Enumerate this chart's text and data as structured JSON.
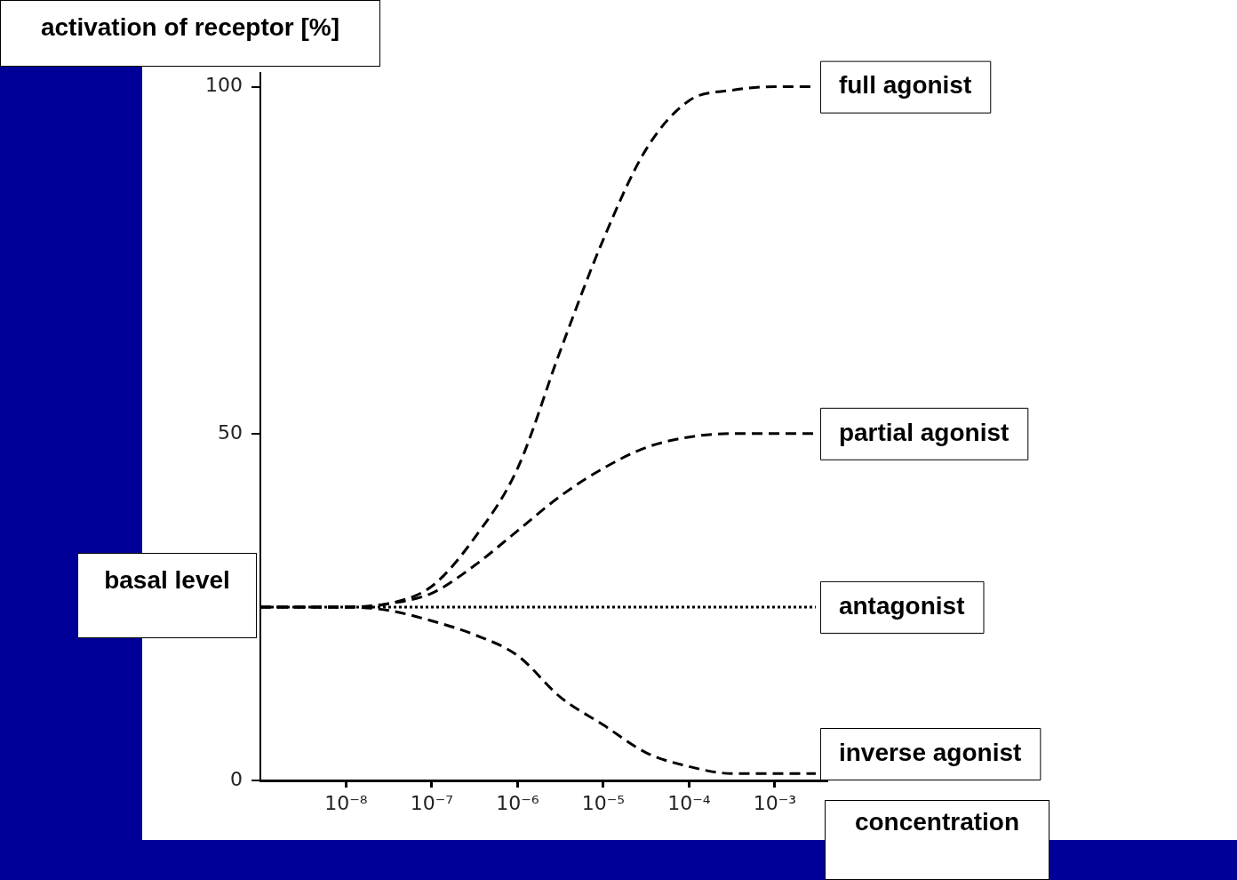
{
  "chart_data": {
    "type": "line",
    "xlabel": "concentration",
    "ylabel": "activation of receptor [%]",
    "annotations": [
      "basal level"
    ],
    "log": "x",
    "xlim": [
      1e-09,
      0.004
    ],
    "xticks": [
      {
        "value": 1e-08,
        "label": "10⁻⁸"
      },
      {
        "value": 1e-07,
        "label": "10⁻⁷"
      },
      {
        "value": 1e-06,
        "label": "10⁻⁶"
      },
      {
        "value": 1e-05,
        "label": "10⁻⁵"
      },
      {
        "value": 0.0001,
        "label": "10⁻⁴"
      },
      {
        "value": 0.001,
        "label": "10⁻³"
      }
    ],
    "ylim": [
      0,
      102
    ],
    "yticks": [
      0,
      50,
      100
    ],
    "grid": false,
    "legend": false,
    "marker": "none",
    "x": [
      1e-09,
      1e-08,
      3.16e-08,
      1e-07,
      3.16e-07,
      1e-06,
      3.16e-06,
      1e-05,
      3.16e-05,
      0.0001,
      0.000316,
      0.001,
      0.003
    ],
    "series": [
      {
        "name": "full agonist",
        "color": "#000000",
        "line_style": "dashed",
        "values": [
          25,
          25,
          25.5,
          28,
          35,
          45,
          62,
          78,
          91,
          98,
          99.5,
          100,
          100
        ]
      },
      {
        "name": "partial agonist",
        "color": "#000000",
        "line_style": "dashed",
        "values": [
          25,
          25,
          25.5,
          27,
          31,
          36,
          41,
          45,
          48,
          49.5,
          50,
          50,
          50
        ]
      },
      {
        "name": "antagonist",
        "color": "#000000",
        "line_style": "dotted",
        "values": [
          25,
          25,
          25,
          25,
          25,
          25,
          25,
          25,
          25,
          25,
          25,
          25,
          25
        ]
      },
      {
        "name": "inverse agonist",
        "color": "#000000",
        "line_style": "dashed",
        "values": [
          25,
          25,
          24.5,
          23,
          21,
          18,
          12,
          8,
          4,
          2,
          1,
          1,
          1
        ]
      }
    ]
  }
}
